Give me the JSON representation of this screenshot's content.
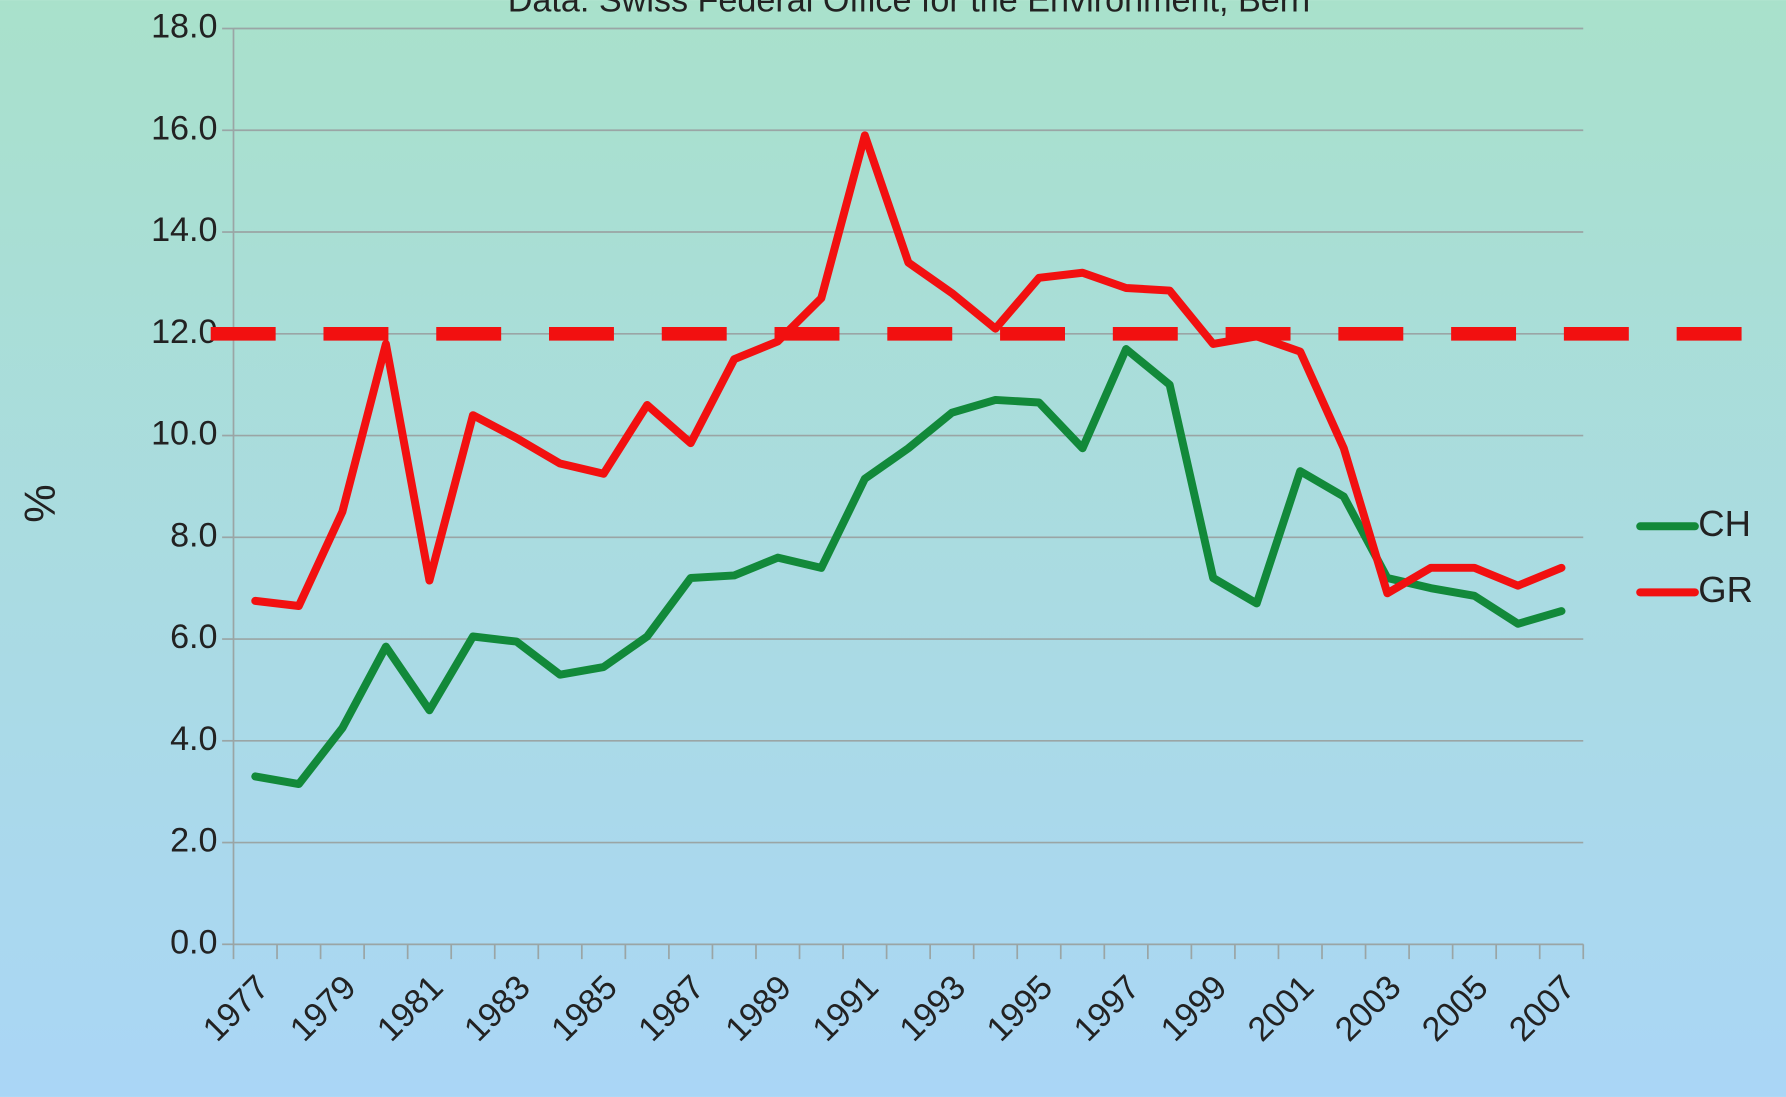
{
  "chart_data": {
    "type": "line",
    "subtitle": "Data: Swiss Federal Office for the Environment, Bern",
    "y_label": "%",
    "categories": [
      "1977",
      null,
      "1979",
      null,
      "1981",
      null,
      "1983",
      null,
      "1985",
      null,
      "1987",
      null,
      "1989",
      null,
      "1991",
      null,
      "1993",
      null,
      "1995",
      null,
      "1997",
      null,
      "1999",
      null,
      "2001",
      null,
      "2003",
      null,
      "2005",
      null,
      "2007"
    ],
    "series": [
      {
        "name": "CH",
        "color": "#12893a",
        "values": [
          3.3,
          3.15,
          4.25,
          5.85,
          4.6,
          6.05,
          5.95,
          5.3,
          5.45,
          6.05,
          7.2,
          7.25,
          7.6,
          7.4,
          9.15,
          9.75,
          10.45,
          10.7,
          10.65,
          9.75,
          11.7,
          11.0,
          7.2,
          6.7,
          9.3,
          8.8,
          7.2,
          7.0,
          6.85,
          6.3,
          6.55
        ]
      },
      {
        "name": "GR",
        "color": "#f21010",
        "values": [
          6.75,
          6.65,
          8.5,
          11.8,
          7.15,
          10.4,
          9.95,
          9.45,
          9.25,
          10.6,
          9.85,
          11.5,
          11.85,
          12.7,
          15.9,
          13.4,
          12.8,
          12.1,
          13.1,
          13.2,
          12.9,
          12.85,
          11.8,
          11.95,
          11.65,
          9.75,
          6.9,
          7.4,
          7.4,
          7.05,
          7.4
        ]
      }
    ],
    "threshold": {
      "value": 12,
      "color": "#f21010"
    },
    "ylim": [
      0,
      18
    ],
    "yticks": [
      {
        "value": 0,
        "label": "0.0"
      },
      {
        "value": 2,
        "label": "2.0"
      },
      {
        "value": 4,
        "label": "4.0"
      },
      {
        "value": 6,
        "label": "6.0"
      },
      {
        "value": 8,
        "label": "8.0"
      },
      {
        "value": 10,
        "label": "10.0"
      },
      {
        "value": 12,
        "label": "12.0"
      },
      {
        "value": 14,
        "label": "14.0"
      },
      {
        "value": 16,
        "label": "16.0"
      },
      {
        "value": 18,
        "label": "18.0"
      }
    ],
    "grid": true,
    "legend": "right"
  }
}
